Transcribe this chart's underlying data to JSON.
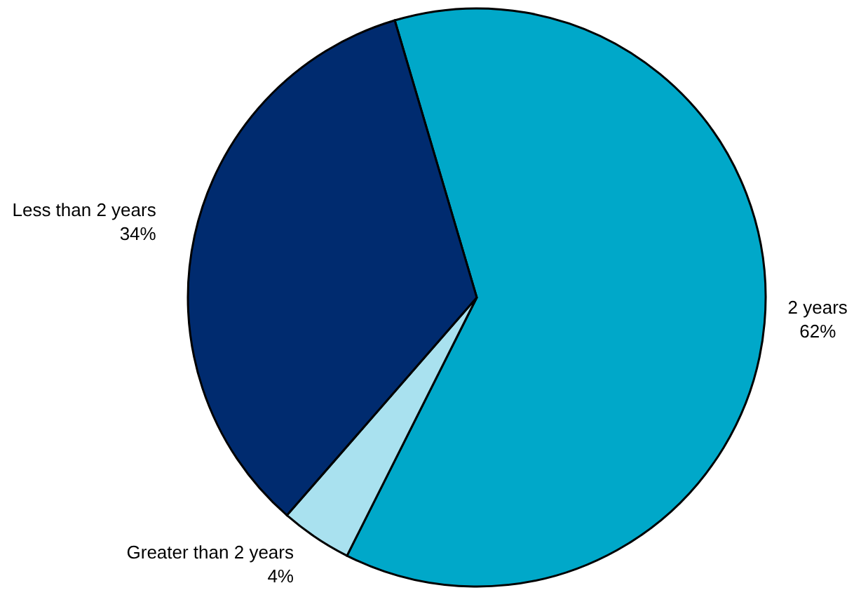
{
  "chart_data": {
    "type": "pie",
    "categories": [
      "2 years",
      "Greater than 2 years",
      "Less than 2 years"
    ],
    "values": [
      62,
      4,
      34
    ],
    "colors": [
      "#00a8c9",
      "#a9e1ef",
      "#002b6f"
    ],
    "value_labels": [
      "62%",
      "4%",
      "34%"
    ]
  }
}
